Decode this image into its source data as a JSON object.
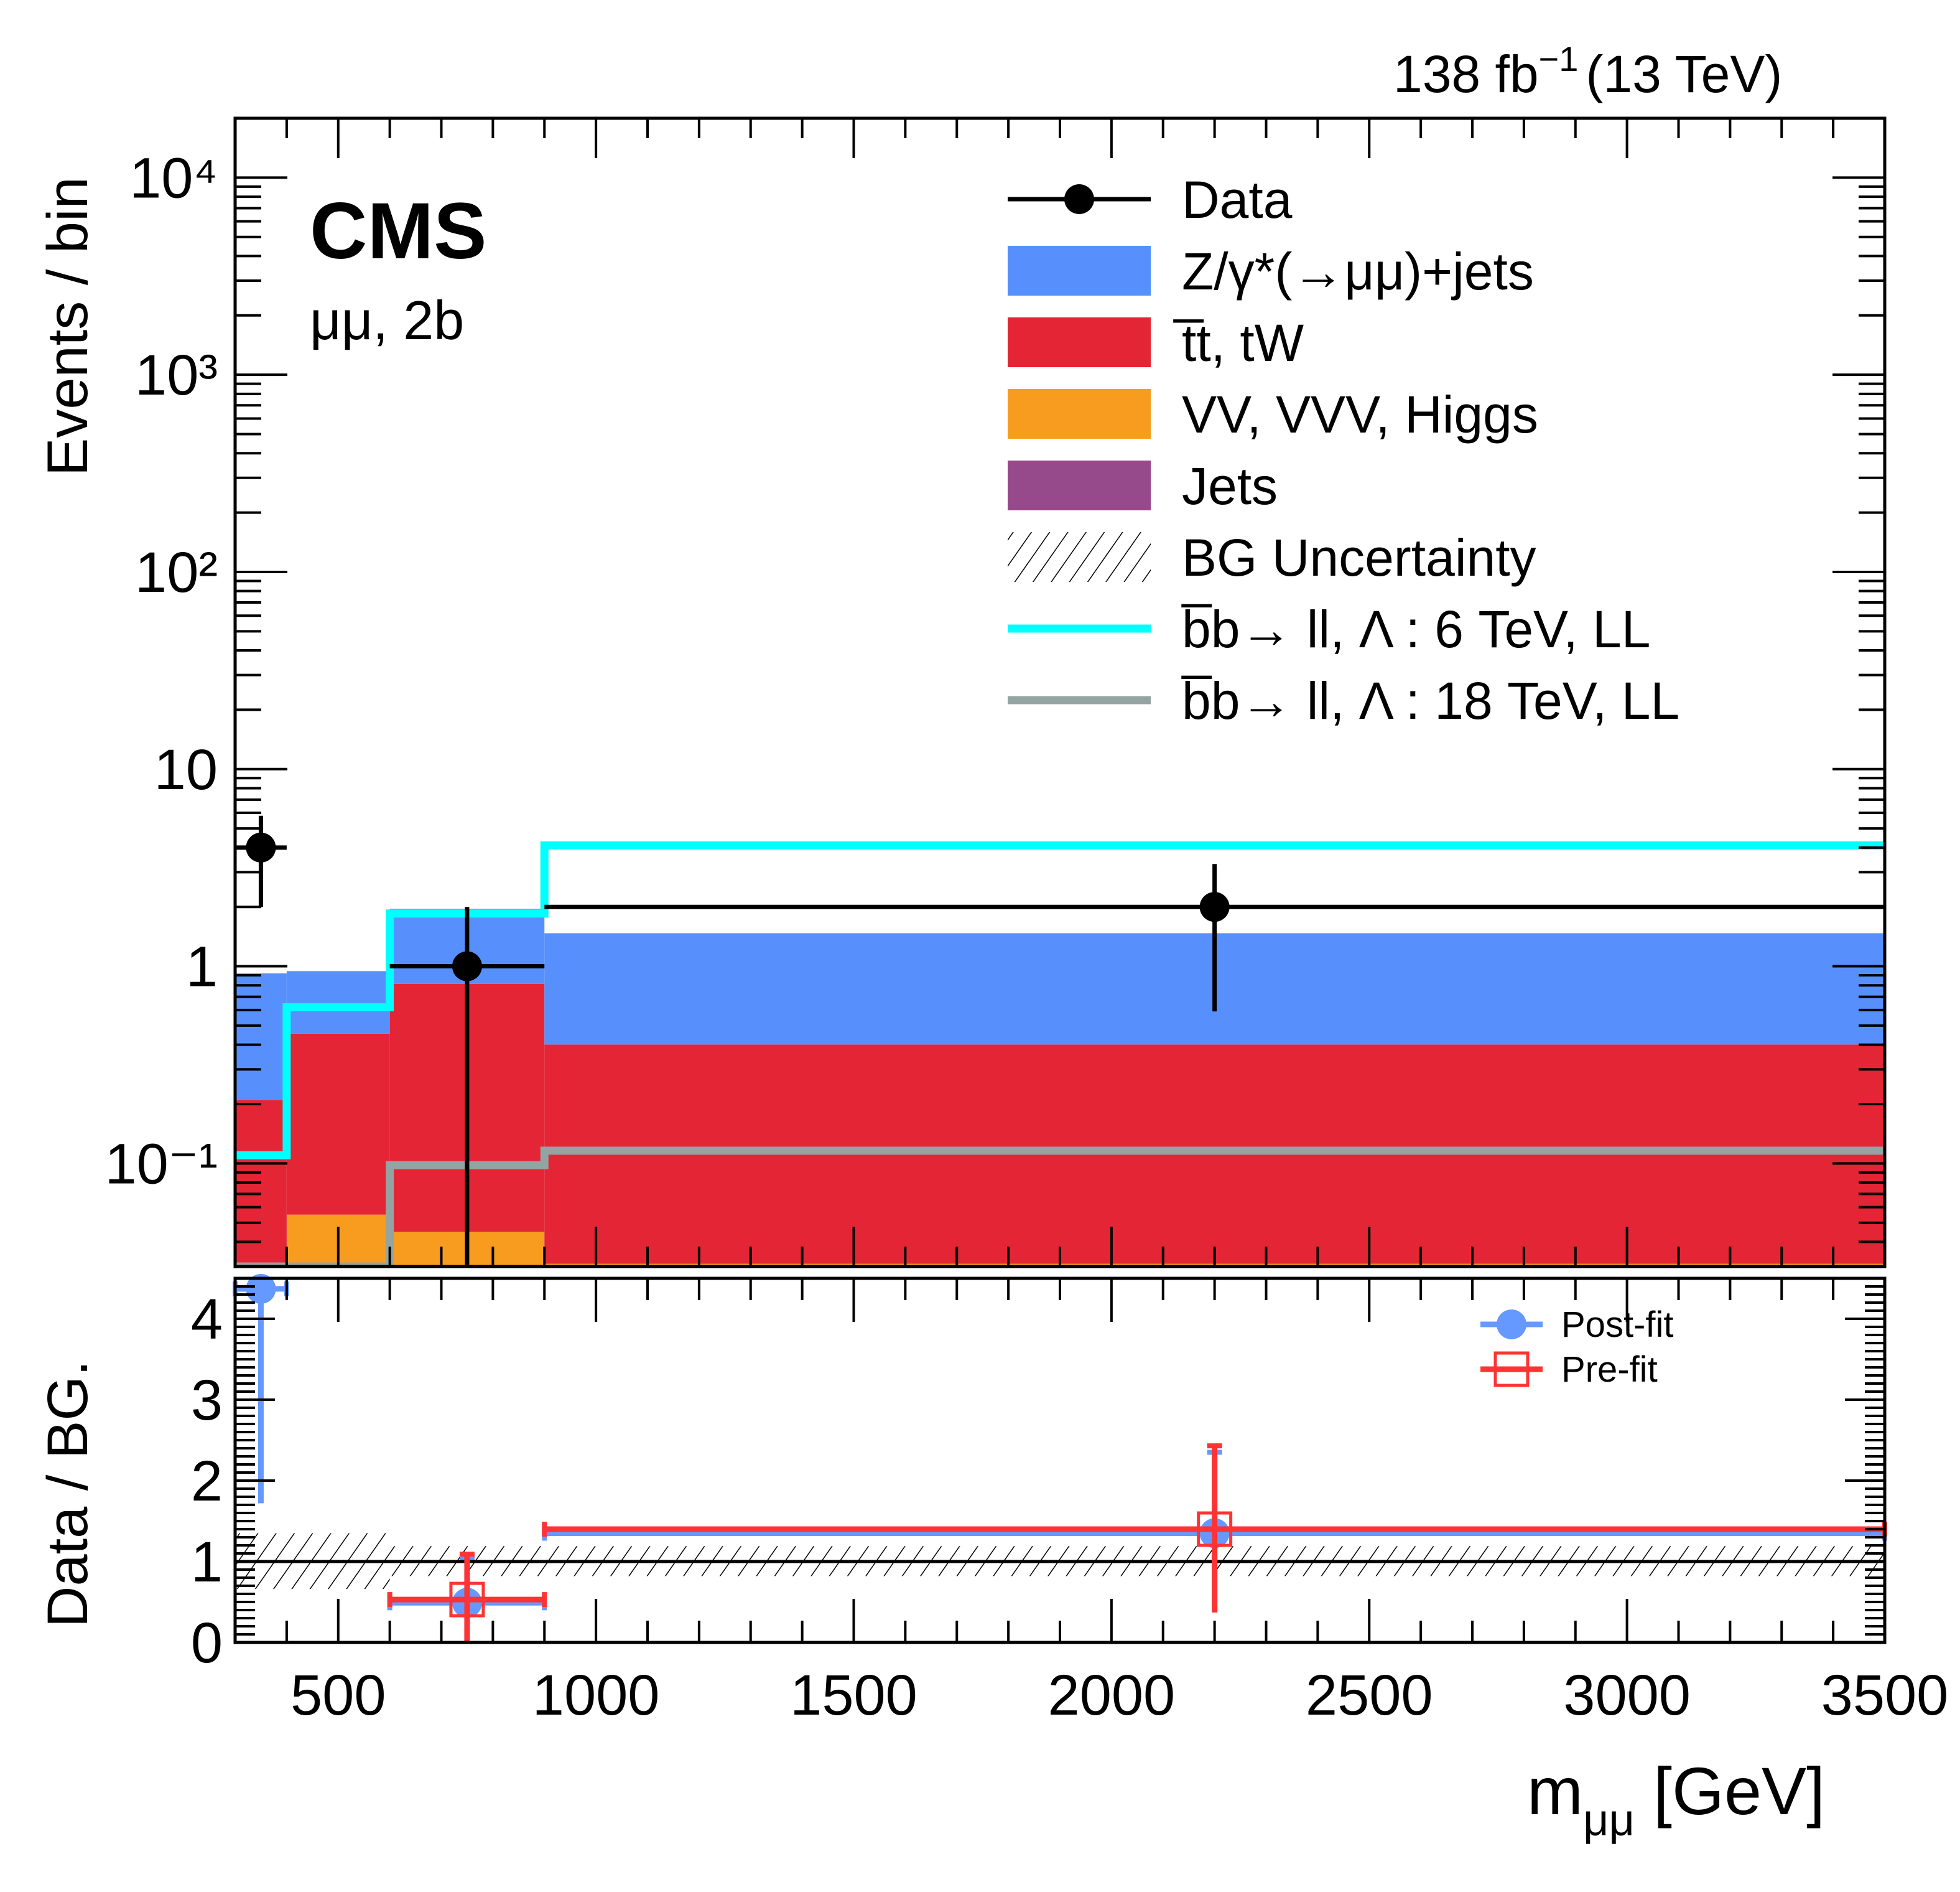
{
  "header": {
    "lumi_label": "138 fb",
    "lumi_exp": "−1",
    "energy_label": "(13 TeV)",
    "experiment": "CMS",
    "channel": "μμ, 2b"
  },
  "colors": {
    "dy": "#5790fc",
    "ttbar": "#e42536",
    "vv": "#f89c20",
    "jets": "#964a8b",
    "sig6": "#00ffff",
    "sig18": "#94a4a2",
    "postfit": "#6699ff",
    "prefit": "#ff3333",
    "data": "#000000"
  },
  "chart_data": [
    {
      "panel": "main",
      "type": "bar",
      "stacked": true,
      "xlabel": "m_{μμ} [GeV]",
      "ylabel": "Events / bin",
      "xlim": [
        300,
        3500
      ],
      "ylim": [
        0.03,
        20000
      ],
      "yscale": "log",
      "bin_edges": [
        300,
        400,
        600,
        900,
        3500
      ],
      "ytick_labels": [
        "10⁻¹",
        "1",
        "10",
        "10²",
        "10³",
        "10⁴"
      ],
      "ytick_values": [
        0.1,
        1,
        10,
        100,
        1000,
        10000
      ],
      "series": [
        {
          "name": "VV, VVV, Higgs",
          "key": "vv",
          "values": [
            0.0,
            0.055,
            0.045,
            0.031
          ]
        },
        {
          "name": "t̅t, tW",
          "key": "ttbar",
          "values": [
            0.21,
            0.4,
            0.77,
            0.37
          ]
        },
        {
          "name": "Z/γ*(→μμ)+jets",
          "key": "dy",
          "values": [
            0.71,
            0.49,
            1.14,
            1.07
          ]
        },
        {
          "name": "Jets",
          "key": "jets",
          "values": [
            0,
            0,
            0,
            0
          ]
        }
      ],
      "stack_totals": [
        0.92,
        0.94,
        1.96,
        1.47
      ],
      "signals": [
        {
          "name": "b̅b→ ll, Λ : 6 TeV, LL",
          "key": "sig6",
          "values": [
            0.11,
            0.62,
            1.85,
            4.1
          ]
        },
        {
          "name": "b̅b→ ll, Λ : 18 TeV, LL",
          "key": "sig18",
          "values": [
            0.03,
            0.03,
            0.098,
            0.116
          ]
        }
      ],
      "data_points": [
        {
          "x": 350,
          "xlo": 300,
          "xhi": 400,
          "y": 4,
          "ylo": 2.0,
          "yhi": 5.8
        },
        {
          "x": 750,
          "xlo": 600,
          "xhi": 900,
          "y": 1,
          "ylo": 0.0,
          "yhi": 2.0
        },
        {
          "x": 2200,
          "xlo": 900,
          "xhi": 3500,
          "y": 2,
          "ylo": 0.59,
          "yhi": 3.3
        }
      ],
      "legend": {
        "position": "top-right",
        "entries": [
          {
            "label": "Data",
            "kind": "marker",
            "key": "data"
          },
          {
            "label": "Z/γ*(→μμ)+jets",
            "kind": "fill",
            "key": "dy"
          },
          {
            "label": "t̅t, tW",
            "kind": "fill",
            "key": "ttbar"
          },
          {
            "label": "VV, VVV, Higgs",
            "kind": "fill",
            "key": "vv"
          },
          {
            "label": "Jets",
            "kind": "fill",
            "key": "jets"
          },
          {
            "label": "BG Uncertainty",
            "kind": "hatch",
            "key": "unc"
          },
          {
            "label": "b̅b→ ll,   Λ : 6 TeV, LL",
            "kind": "line",
            "key": "sig6"
          },
          {
            "label": "b̅b→ ll,   Λ : 18 TeV, LL",
            "kind": "line",
            "key": "sig18"
          }
        ]
      }
    },
    {
      "panel": "ratio",
      "type": "scatter",
      "ylabel": "Data / BG.",
      "xlabel": "m_{μμ} [GeV]",
      "xlim": [
        300,
        3500
      ],
      "ylim": [
        0,
        4.5
      ],
      "xtick_values": [
        500,
        1000,
        1500,
        2000,
        2500,
        3000,
        3500
      ],
      "xtick_labels": [
        "500",
        "1000",
        "1500",
        "2000",
        "2500",
        "3000",
        "3500"
      ],
      "ytick_values": [
        0,
        1,
        2,
        3,
        4
      ],
      "ytick_labels": [
        "0",
        "1",
        "2",
        "3",
        "4"
      ],
      "reference_line": 1,
      "uncertainty_band": [
        {
          "xlo": 300,
          "xhi": 600,
          "lo": 0.66,
          "hi": 1.35
        },
        {
          "xlo": 600,
          "xhi": 3500,
          "lo": 0.82,
          "hi": 1.19
        }
      ],
      "series": [
        {
          "name": "Post-fit",
          "key": "postfit",
          "points": [
            {
              "x": 350,
              "xlo": 300,
              "xhi": 400,
              "y": 4.37,
              "ylo": 1.72,
              "yhi": 4.5
            },
            {
              "x": 750,
              "xlo": 600,
              "xhi": 900,
              "y": 0.49,
              "ylo": 0.0,
              "yhi": 1.05
            },
            {
              "x": 2200,
              "xlo": 900,
              "xhi": 3500,
              "y": 1.35,
              "ylo": 0.37,
              "yhi": 2.35
            }
          ]
        },
        {
          "name": "Pre-fit",
          "key": "prefit",
          "points": [
            {
              "x": 750,
              "xlo": 600,
              "xhi": 900,
              "y": 0.53,
              "ylo": 0.0,
              "yhi": 1.09
            },
            {
              "x": 2200,
              "xlo": 900,
              "xhi": 3500,
              "y": 1.4,
              "ylo": 0.37,
              "yhi": 2.43
            }
          ]
        }
      ],
      "legend": {
        "position": "top-right",
        "entries": [
          {
            "label": "Post-fit",
            "key": "postfit"
          },
          {
            "label": "Pre-fit",
            "key": "prefit"
          }
        ]
      }
    }
  ],
  "labels": {
    "main_ylabel": "Events / bin",
    "ratio_ylabel": "Data / BG.",
    "xlabel_main": "m",
    "xlabel_sub": "μμ",
    "xlabel_unit": " [GeV]"
  }
}
